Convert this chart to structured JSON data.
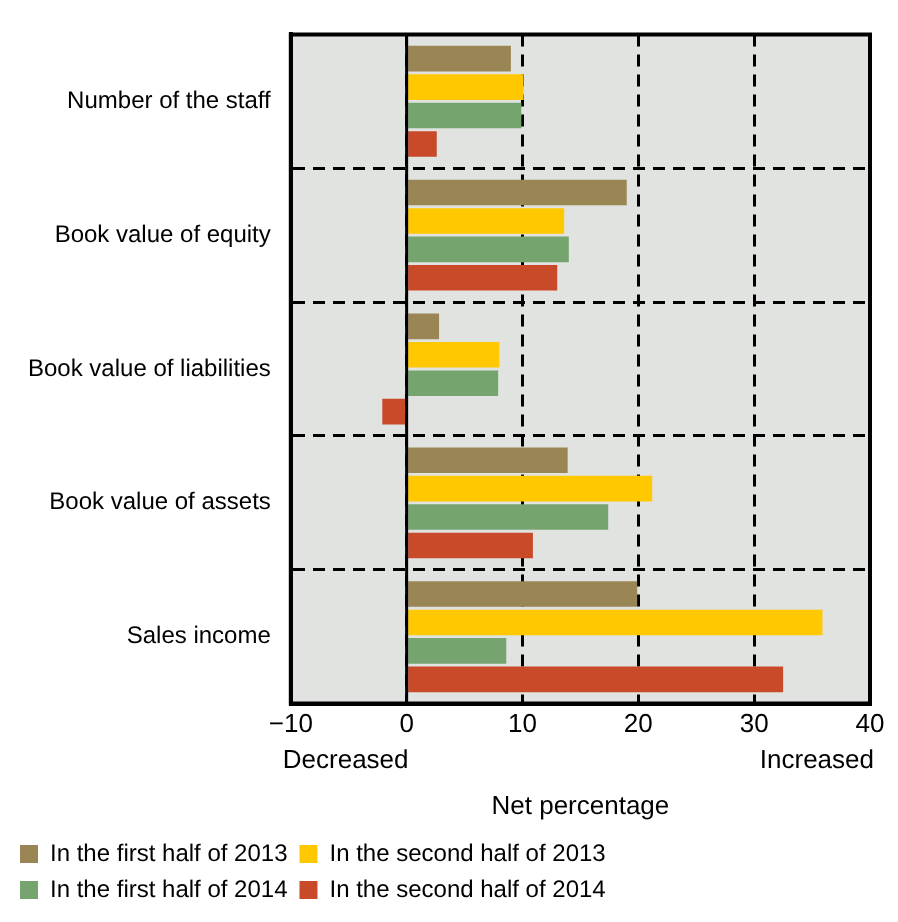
{
  "chart_data": {
    "type": "bar",
    "orientation": "horizontal",
    "xlabel": "Net percentage",
    "annotations": [
      "Decreased",
      "Increased"
    ],
    "categories": [
      "Number of the staff",
      "Book value of equity",
      "Book value of liabilities",
      "Book value of assets",
      "Sales income"
    ],
    "series": [
      {
        "name": "In the first half of 2013",
        "color": "#9a8655",
        "values": [
          9.0,
          19.0,
          2.8,
          13.9,
          19.9
        ]
      },
      {
        "name": "In the second half of 2013",
        "color": "#ffc800",
        "values": [
          10.1,
          13.6,
          8.0,
          21.2,
          35.9
        ]
      },
      {
        "name": "In the first half of 2014",
        "color": "#76a46f",
        "values": [
          9.9,
          14.0,
          7.9,
          17.4,
          8.6
        ]
      },
      {
        "name": "In the second half of 2014",
        "color": "#c94a28",
        "values": [
          2.6,
          13.0,
          -2.1,
          10.9,
          32.5
        ]
      }
    ],
    "xlim": [
      -10,
      40
    ],
    "xticks": [
      {
        "value": -10,
        "label": "−10"
      },
      0,
      10,
      20,
      30,
      40
    ],
    "grid": true,
    "legend": "bottom left"
  }
}
